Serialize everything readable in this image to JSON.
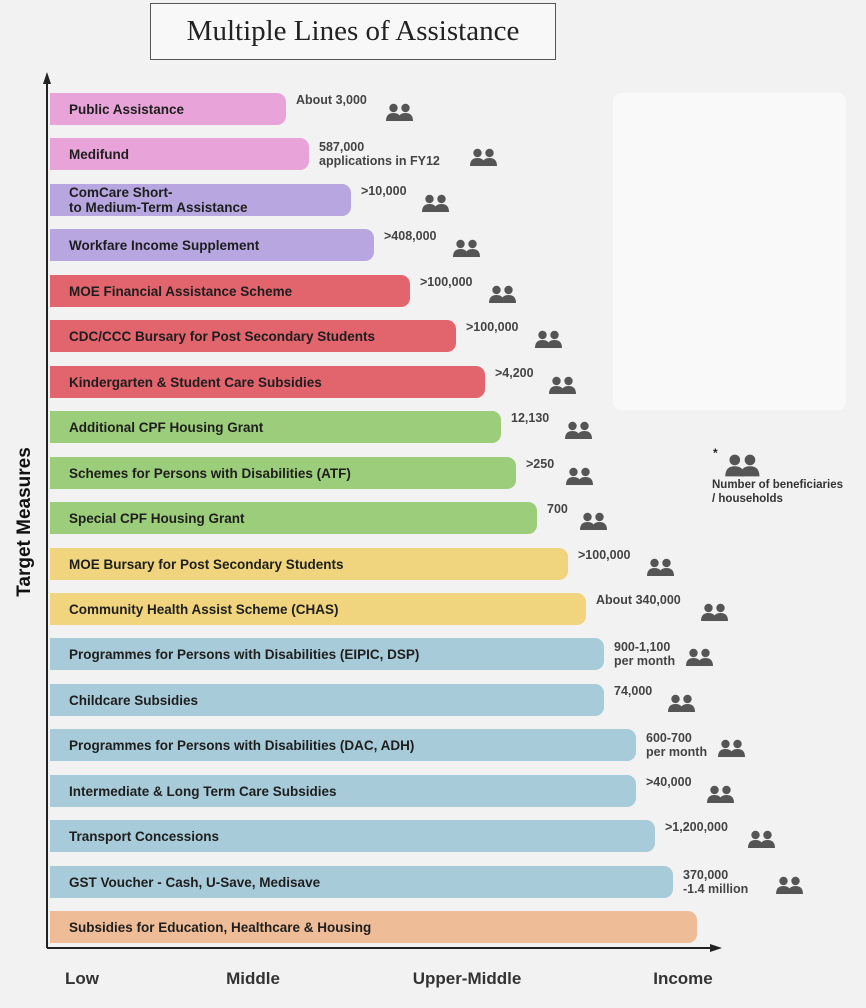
{
  "chart_data": {
    "type": "bar",
    "orientation": "horizontal",
    "title": "Multiple Lines of Assistance",
    "ylabel": "Target Measures",
    "x_tick_labels": [
      "Low",
      "Middle",
      "Upper-Middle",
      "Income"
    ],
    "legend": {
      "marker": "*",
      "icon": "people-icon",
      "text": "Number of beneficiaries\n/ households"
    },
    "bars": [
      {
        "label": "Public Assistance",
        "beneficiaries": "About 3,000",
        "income_reach": 0.365,
        "color": "#e8a4d9"
      },
      {
        "label": "Medifund",
        "beneficiaries": "587,000\napplications in FY12",
        "income_reach": 0.4,
        "color": "#e8a4d9"
      },
      {
        "label": "ComCare Short-\nto Medium-Term Assistance",
        "beneficiaries": ">10,000",
        "income_reach": 0.465,
        "color": "#b8a6e0"
      },
      {
        "label": "Workfare Income Supplement",
        "beneficiaries": ">408,000",
        "income_reach": 0.5,
        "color": "#b8a6e0"
      },
      {
        "label": "MOE Financial Assistance Scheme",
        "beneficiaries": ">100,000",
        "income_reach": 0.556,
        "color": "#e2646c"
      },
      {
        "label": "CDC/CCC Bursary for Post Secondary Students",
        "beneficiaries": ">100,000",
        "income_reach": 0.627,
        "color": "#e2646c"
      },
      {
        "label": "Kindergarten & Student Care Subsidies",
        "beneficiaries": ">4,200",
        "income_reach": 0.673,
        "color": "#e2646c"
      },
      {
        "label": "Additional CPF Housing Grant",
        "beneficiaries": "12,130",
        "income_reach": 0.697,
        "color": "#9ccd7a"
      },
      {
        "label": "Schemes for Persons with Disabilities (ATF)",
        "beneficiaries": ">250",
        "income_reach": 0.72,
        "color": "#9ccd7a"
      },
      {
        "label": "Special CPF Housing Grant",
        "beneficiaries": "700",
        "income_reach": 0.753,
        "color": "#9ccd7a"
      },
      {
        "label": "MOE Bursary for Post Secondary Students",
        "beneficiaries": ">100,000",
        "income_reach": 0.8,
        "color": "#f0d57e"
      },
      {
        "label": "Community Health Assist Scheme (CHAS)",
        "beneficiaries": "About 340,000",
        "income_reach": 0.829,
        "color": "#f0d57e"
      },
      {
        "label": "Programmes for Persons with Disabilities (EIPIC, DSP)",
        "beneficiaries": "900-1,100\nper month",
        "income_reach": 0.856,
        "color": "#a7cbd9"
      },
      {
        "label": "Childcare Subsidies",
        "beneficiaries": "74,000",
        "income_reach": 0.856,
        "color": "#a7cbd9"
      },
      {
        "label": "Programmes for Persons with Disabilities (DAC, ADH)",
        "beneficiaries": "600-700\nper month",
        "income_reach": 0.906,
        "color": "#a7cbd9"
      },
      {
        "label": "Intermediate & Long Term Care Subsidies",
        "beneficiaries": ">40,000",
        "income_reach": 0.906,
        "color": "#a7cbd9"
      },
      {
        "label": "Transport Concessions",
        "beneficiaries": ">1,200,000",
        "income_reach": 0.935,
        "color": "#a7cbd9"
      },
      {
        "label": "GST Voucher - Cash, U-Save, Medisave",
        "beneficiaries": "370,000\n-1.4 million",
        "income_reach": 0.963,
        "color": "#a7cbd9"
      },
      {
        "label": "Subsidies for Education, Healthcare & Housing",
        "beneficiaries": "",
        "income_reach": 1.0,
        "color": "#eebd98"
      }
    ]
  }
}
